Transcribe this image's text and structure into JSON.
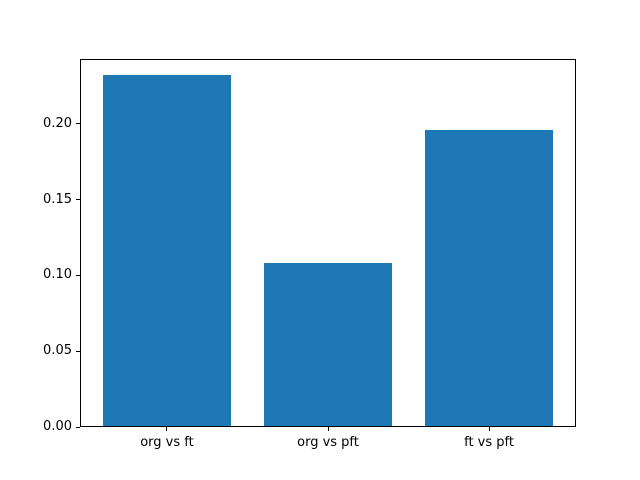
{
  "chart_data": {
    "type": "bar",
    "title": "",
    "xlabel": "",
    "ylabel": "",
    "categories": [
      "org vs ft",
      "org vs pft",
      "ft vs pft"
    ],
    "values": [
      0.232,
      0.108,
      0.196
    ],
    "bar_color": "#1f77b4",
    "background_color": "#ffffff",
    "spine_color": "#000000",
    "ylim": [
      0,
      0.2428
    ],
    "yticks": [
      0.0,
      0.05,
      0.1,
      0.15,
      0.2
    ],
    "ytick_labels": [
      "0.00",
      "0.05",
      "0.10",
      "0.15",
      "0.20"
    ],
    "grid": false,
    "legend": null,
    "bar_width_fraction": 0.8
  }
}
